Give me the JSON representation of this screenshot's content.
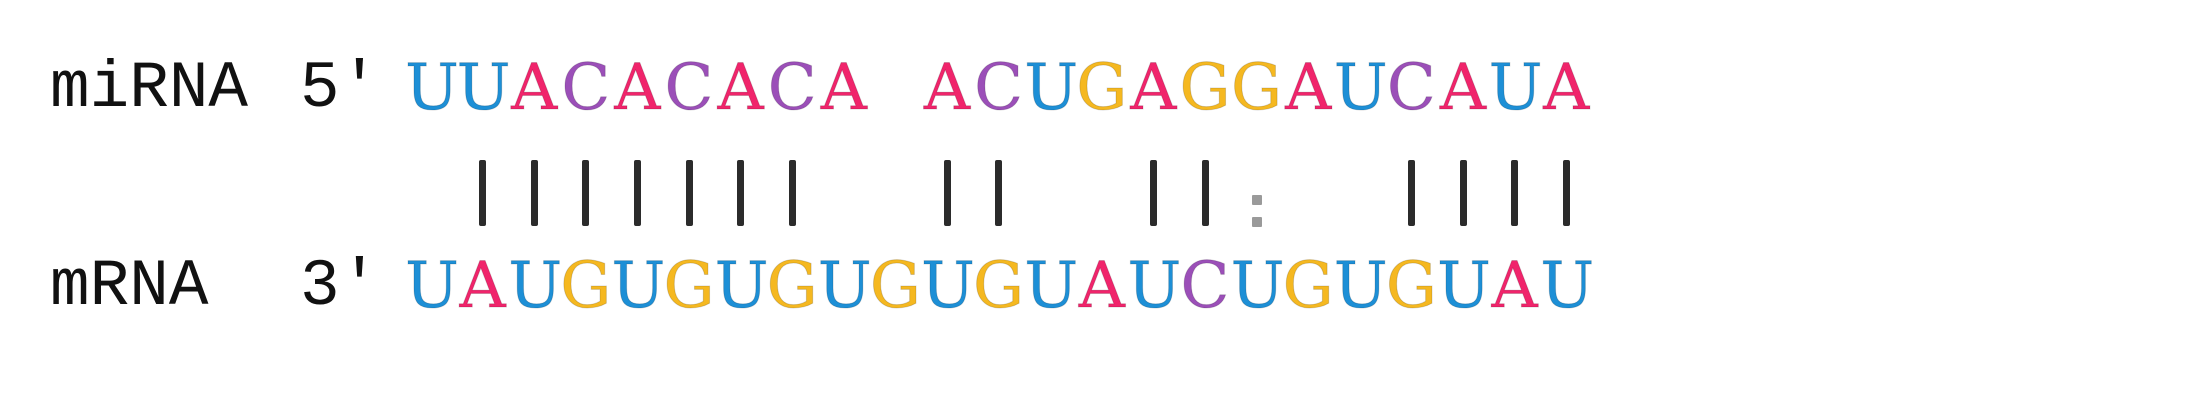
{
  "colors": {
    "A": "#f0246b",
    "C": "#9b4fb8",
    "G": "#f5b820",
    "U": "#1d8fd6",
    "text": "#111111",
    "bar": "#2b2b2b",
    "wobble": "#9a9a9a"
  },
  "mirna": {
    "label": "miRNA",
    "end": "5'",
    "sequence": [
      "U",
      "U",
      "A",
      "C",
      "A",
      "C",
      "A",
      "C",
      "A",
      " ",
      "A",
      "C",
      "U",
      "G",
      "A",
      "G",
      "G",
      "A",
      "U",
      "C",
      "A",
      "U",
      "A"
    ]
  },
  "pairing": [
    "none",
    "bar",
    "bar",
    "bar",
    "bar",
    "bar",
    "bar",
    "bar",
    "none",
    "none",
    "bar",
    "bar",
    "none",
    "none",
    "bar",
    "bar",
    "wobble",
    "none",
    "none",
    "bar",
    "bar",
    "bar",
    "bar"
  ],
  "mrna": {
    "label": "mRNA",
    "end": "3'",
    "sequence": [
      "U",
      "A",
      "U",
      "G",
      "U",
      "G",
      "U",
      "G",
      "U",
      "G",
      "U",
      "G",
      "U",
      "A",
      "U",
      "C",
      "U",
      "G",
      "U",
      "G",
      "U",
      "A",
      "U"
    ]
  }
}
